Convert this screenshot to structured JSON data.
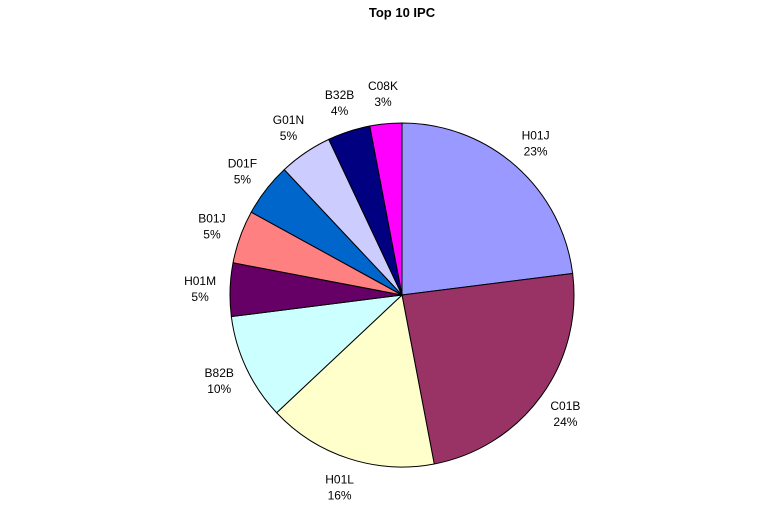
{
  "chart_data": {
    "type": "pie",
    "title": "Top 10 IPC",
    "categories": [
      "H01J",
      "C01B",
      "H01L",
      "B82B",
      "H01M",
      "B01J",
      "D01F",
      "G01N",
      "B32B",
      "C08K"
    ],
    "values": [
      23,
      24,
      16,
      10,
      5,
      5,
      5,
      5,
      4,
      3
    ],
    "value_labels": [
      "23%",
      "24%",
      "16%",
      "10%",
      "5%",
      "5%",
      "5%",
      "5%",
      "4%",
      "3%"
    ],
    "colors": [
      "#9999ff",
      "#993366",
      "#ffffcc",
      "#ccffff",
      "#660066",
      "#ff8080",
      "#0066cc",
      "#ccccff",
      "#000080",
      "#ff00ff"
    ]
  }
}
